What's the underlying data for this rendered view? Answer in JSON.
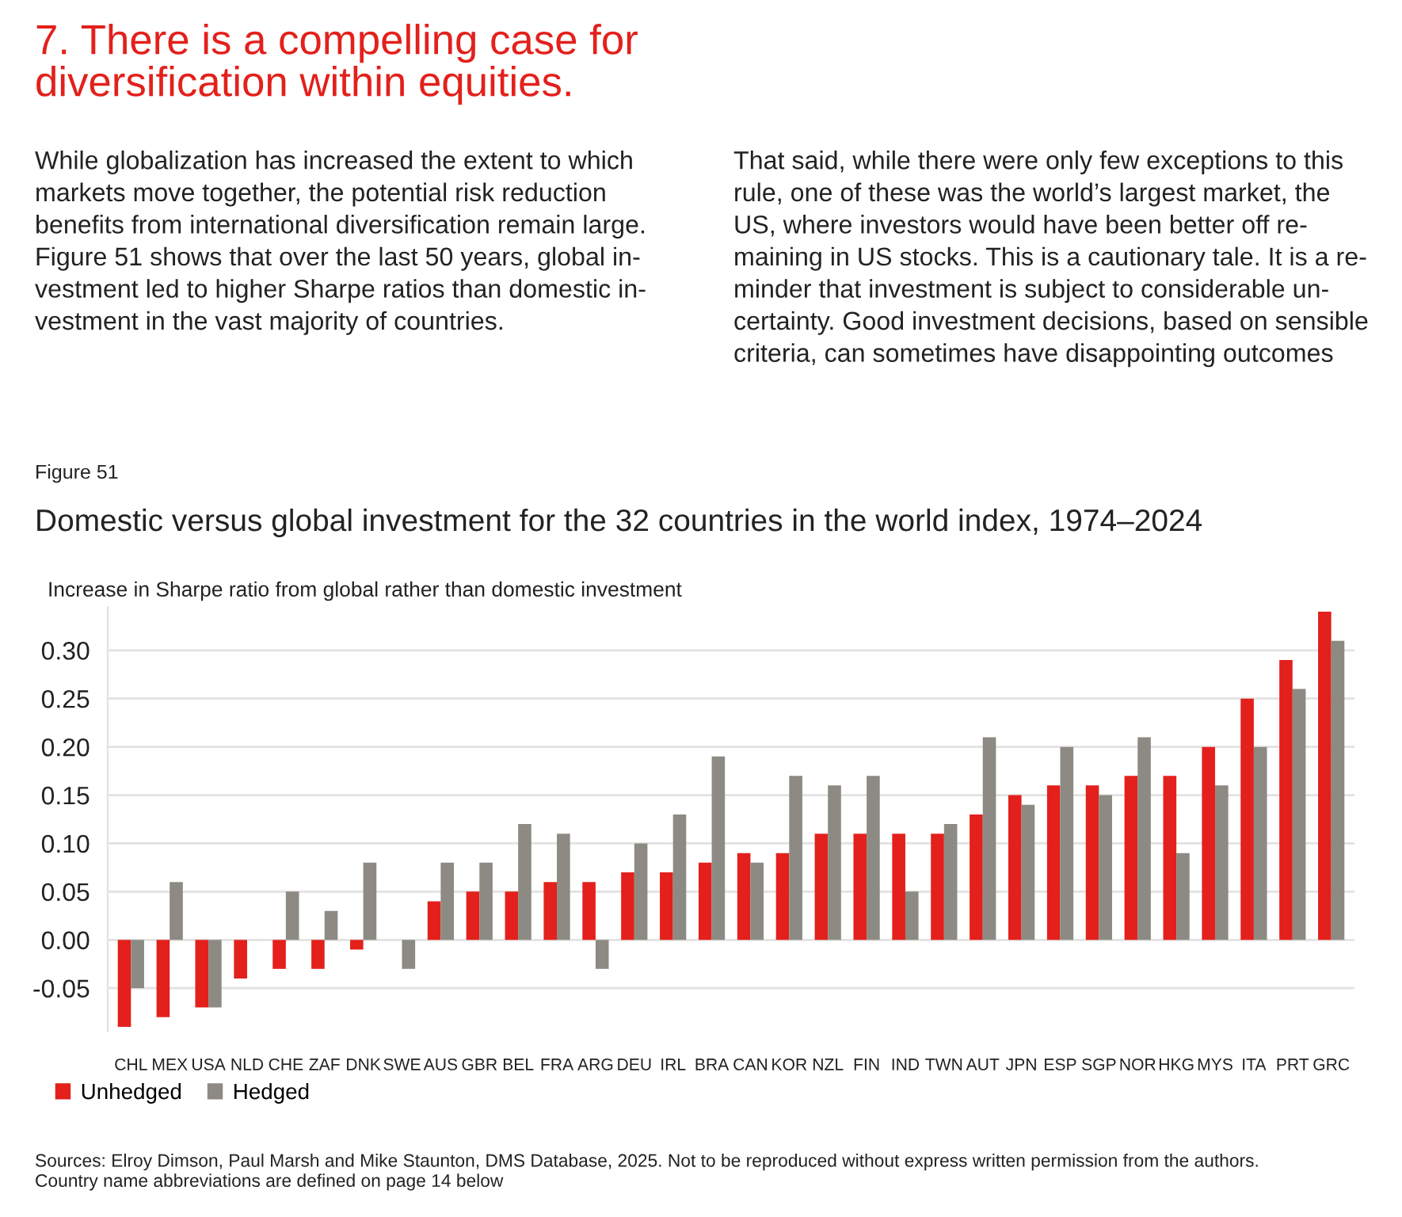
{
  "chart_data": {
    "type": "bar",
    "title": "Domestic versus global investment for the 32 countries in the world index, 1974–2024",
    "ylabel": "Increase in Sharpe ratio from global rather than domestic investment",
    "annotations": [
      "7. There is a compelling case for\ndiversification within equities.",
      "While globalization has increased the extent to which\nmarkets move together, the potential risk reduction\nbenefits from international diversification remain large.\nFigure 51 shows that over the last 50 years, global in-\nvestment led to higher Sharpe ratios than domestic in-\nvestment in the vast majority of countries.",
      "That said, while there were only few exceptions to this\nrule, one of these was the world’s largest market, the\nUS, where investors would have been better off re-\nmaining in US stocks. This is a cautionary tale. It is a re-\nminder that investment is subject to considerable un-\ncertainty. Good investment decisions, based on sensible\ncriteria, can sometimes have disappointing outcomes",
      "Figure 51",
      "Sources: Elroy Dimson, Paul Marsh and Mike Staunton, DMS Database, 2025. Not to be reproduced without express written permission from the authors.\nCountry name abbreviations are defined on page 14 below"
    ],
    "categories": [
      "CHL",
      "MEX",
      "USA",
      "NLD",
      "CHE",
      "ZAF",
      "DNK",
      "SWE",
      "AUS",
      "GBR",
      "BEL",
      "FRA",
      "ARG",
      "DEU",
      "IRL",
      "BRA",
      "CAN",
      "KOR",
      "NZL",
      "FIN",
      "IND",
      "TWN",
      "AUT",
      "JPN",
      "ESP",
      "SGP",
      "NOR",
      "HKG",
      "MYS",
      "ITA",
      "PRT",
      "GRC"
    ],
    "series": [
      {
        "name": "Unhedged",
        "color": "#e3201b",
        "values": [
          -0.09,
          -0.08,
          -0.07,
          -0.04,
          -0.03,
          -0.03,
          -0.01,
          0,
          0.04,
          0.05,
          0.05,
          0.06,
          0.06,
          0.07,
          0.07,
          0.08,
          0.09,
          0.09,
          0.11,
          0.11,
          0.11,
          0.11,
          0.13,
          0.15,
          0.16,
          0.16,
          0.17,
          0.17,
          0.2,
          0.25,
          0.29,
          0.34
        ]
      },
      {
        "name": "Hedged",
        "color": "#8c8a83",
        "values": [
          -0.05,
          0.06,
          -0.07,
          0,
          0.05,
          0.03,
          0.08,
          -0.03,
          0.08,
          0.08,
          0.12,
          0.11,
          -0.03,
          0.1,
          0.13,
          0.19,
          0.08,
          0.17,
          0.16,
          0.17,
          0.05,
          0.12,
          0.21,
          0.14,
          0.2,
          0.15,
          0.21,
          0.09,
          0.16,
          0.2,
          0.26,
          0.31
        ]
      }
    ],
    "ylim": [
      -0.095,
      0.345
    ],
    "yticks": [
      {
        "value": -0.05,
        "label": "-0.05"
      },
      {
        "value": 0,
        "label": "0.00"
      },
      {
        "value": 0.05,
        "label": "0.05"
      },
      {
        "value": 0.1,
        "label": "0.10"
      },
      {
        "value": 0.15,
        "label": "0.15"
      },
      {
        "value": 0.2,
        "label": "0.20"
      },
      {
        "value": 0.25,
        "label": "0.25"
      },
      {
        "value": 0.3,
        "label": "0.30"
      }
    ],
    "grid": "y",
    "legend": "bottom left"
  }
}
